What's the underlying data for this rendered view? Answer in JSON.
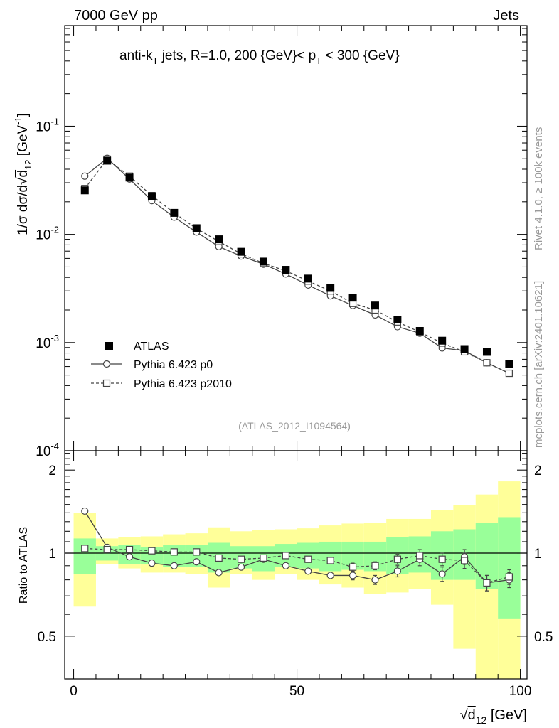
{
  "header": {
    "left": "7000 GeV pp",
    "right": "Jets"
  },
  "side_labels": {
    "rivet": "Rivet 4.1.0, ≥ 100k events",
    "mcplots": "mcplots.cern.ch [arXiv:2401.10621]"
  },
  "colors": {
    "data": "#000000",
    "p0": "#444444",
    "p2010": "#444444",
    "band_inner": "#99ff99",
    "band_outer": "#ffff99",
    "watermark": "#999999"
  },
  "chart_data": [
    {
      "type": "scatter",
      "panel": "main",
      "title": "anti-k_T jets, R=1.0, 200 {GeV}< p_T < 300 {GeV}",
      "title_parts": {
        "a": "anti-k",
        "a_sub": "T",
        "b": " jets, R=1.0, 200 {GeV}< p",
        "b_sub": "T",
        "c": " < 300 {GeV}"
      },
      "ylabel": "1/σ dσ/d√d12 [GeV⁻¹]",
      "ylabel_parts": {
        "main": "1/σ dσ/d",
        "sqrt": "d",
        "sub": "12",
        "unit": " [GeV",
        "sup": "-1",
        "close": "]"
      },
      "yscale": "log",
      "ylim": [
        0.0001,
        0.85
      ],
      "xlim": [
        -2,
        101.5
      ],
      "yticks": [
        {
          "base": "10",
          "exp": "-4",
          "value": 0.0001
        },
        {
          "base": "10",
          "exp": "-3",
          "value": 0.001
        },
        {
          "base": "10",
          "exp": "-2",
          "value": 0.01
        },
        {
          "base": "10",
          "exp": "-1",
          "value": 0.1
        }
      ],
      "watermark": "(ATLAS_2012_I1094564)",
      "x": [
        2.5,
        7.5,
        12.5,
        17.5,
        22.5,
        27.5,
        32.5,
        37.5,
        42.5,
        47.5,
        52.5,
        57.5,
        62.5,
        67.5,
        72.5,
        77.5,
        82.5,
        87.5,
        92.5,
        97.5
      ],
      "series": [
        {
          "name": "ATLAS",
          "marker": "filled-square",
          "values": [
            0.0255,
            0.048,
            0.0335,
            0.0225,
            0.0158,
            0.0114,
            0.009,
            0.0069,
            0.0056,
            0.0047,
            0.0039,
            0.0032,
            0.0026,
            0.0022,
            0.00163,
            0.00128,
            0.00104,
            0.00087,
            0.00082,
            0.00063
          ]
        },
        {
          "name": "Pythia 6.423 p0",
          "marker": "open-circle",
          "line": "solid",
          "values": [
            0.0345,
            0.0505,
            0.0325,
            0.0205,
            0.0144,
            0.0105,
            0.0077,
            0.0063,
            0.0053,
            0.0043,
            0.0034,
            0.0027,
            0.0022,
            0.0018,
            0.0014,
            0.00122,
            0.00089,
            0.00084,
            0.00065,
            0.00052
          ]
        },
        {
          "name": "Pythia 6.423 p2010",
          "marker": "open-square",
          "line": "dashed",
          "values": [
            0.0265,
            0.0495,
            0.0345,
            0.0228,
            0.0158,
            0.0113,
            0.0086,
            0.0066,
            0.0054,
            0.0046,
            0.0037,
            0.003,
            0.0023,
            0.002,
            0.00155,
            0.00125,
            0.00099,
            0.00082,
            0.00065,
            0.00052
          ]
        }
      ]
    },
    {
      "type": "scatter",
      "panel": "ratio",
      "ylabel": "Ratio to ATLAS",
      "xlabel": "√d12 [GeV]",
      "xlabel_parts": {
        "sqrt": "d",
        "sub": "12",
        "unit": " [GeV]"
      },
      "xlim": [
        -2,
        101.5
      ],
      "ylim": [
        0.35,
        2.35
      ],
      "xticks": [
        0,
        50,
        100
      ],
      "xtick_labels": [
        "0",
        "50",
        "100"
      ],
      "yticks": [
        0.5,
        1,
        2
      ],
      "ytick_labels": [
        "0.5",
        "1",
        "2"
      ],
      "bins": [
        [
          0,
          5
        ],
        [
          5,
          10
        ],
        [
          10,
          15
        ],
        [
          15,
          20
        ],
        [
          20,
          25
        ],
        [
          25,
          30
        ],
        [
          30,
          35
        ],
        [
          35,
          40
        ],
        [
          40,
          45
        ],
        [
          45,
          50
        ],
        [
          50,
          55
        ],
        [
          55,
          60
        ],
        [
          60,
          65
        ],
        [
          65,
          70
        ],
        [
          70,
          75
        ],
        [
          75,
          80
        ],
        [
          80,
          85
        ],
        [
          85,
          90
        ],
        [
          90,
          95
        ],
        [
          95,
          100
        ]
      ],
      "band_inner": [
        [
          0.84,
          1.13
        ],
        [
          0.94,
          1.06
        ],
        [
          0.91,
          1.07
        ],
        [
          0.91,
          1.05
        ],
        [
          0.89,
          1.07
        ],
        [
          0.89,
          1.07
        ],
        [
          0.85,
          1.09
        ],
        [
          0.88,
          1.06
        ],
        [
          0.86,
          1.06
        ],
        [
          0.89,
          1.08
        ],
        [
          0.88,
          1.09
        ],
        [
          0.86,
          1.1
        ],
        [
          0.87,
          1.1
        ],
        [
          0.86,
          1.1
        ],
        [
          0.84,
          1.14
        ],
        [
          0.85,
          1.15
        ],
        [
          0.8,
          1.2
        ],
        [
          0.8,
          1.22
        ],
        [
          0.74,
          1.29
        ],
        [
          0.58,
          1.35
        ]
      ],
      "band_outer": [
        [
          0.64,
          1.4
        ],
        [
          0.91,
          1.13
        ],
        [
          0.88,
          1.14
        ],
        [
          0.85,
          1.15
        ],
        [
          0.85,
          1.17
        ],
        [
          0.84,
          1.18
        ],
        [
          0.75,
          1.24
        ],
        [
          0.84,
          1.2
        ],
        [
          0.8,
          1.21
        ],
        [
          0.84,
          1.22
        ],
        [
          0.8,
          1.23
        ],
        [
          0.77,
          1.26
        ],
        [
          0.75,
          1.28
        ],
        [
          0.71,
          1.29
        ],
        [
          0.72,
          1.33
        ],
        [
          0.74,
          1.33
        ],
        [
          0.65,
          1.43
        ],
        [
          0.45,
          1.49
        ],
        [
          0.35,
          1.63
        ],
        [
          0.35,
          1.82
        ]
      ],
      "series": [
        {
          "name": "Pythia 6.423 p0",
          "marker": "open-circle",
          "line": "solid",
          "values": [
            1.42,
            1.05,
            0.97,
            0.92,
            0.9,
            0.93,
            0.85,
            0.89,
            0.95,
            0.9,
            0.86,
            0.83,
            0.83,
            0.8,
            0.86,
            0.95,
            0.84,
            0.97,
            0.78,
            0.8
          ],
          "errors": [
            0,
            0,
            0,
            0,
            0,
            0,
            0,
            0,
            0.01,
            0.02,
            0.02,
            0.02,
            0.03,
            0.03,
            0.04,
            0.05,
            0.05,
            0.06,
            0.05,
            0.05
          ]
        },
        {
          "name": "Pythia 6.423 p2010",
          "marker": "open-square",
          "line": "dashed",
          "values": [
            1.04,
            1.03,
            1.03,
            1.02,
            1.01,
            1.01,
            0.96,
            0.95,
            0.96,
            0.98,
            0.95,
            0.94,
            0.89,
            0.9,
            0.95,
            0.98,
            0.95,
            0.94,
            0.78,
            0.82
          ],
          "errors": [
            0,
            0,
            0,
            0,
            0,
            0,
            0,
            0,
            0.01,
            0.02,
            0.02,
            0.02,
            0.03,
            0.03,
            0.04,
            0.05,
            0.05,
            0.06,
            0.05,
            0.05
          ]
        }
      ]
    }
  ]
}
